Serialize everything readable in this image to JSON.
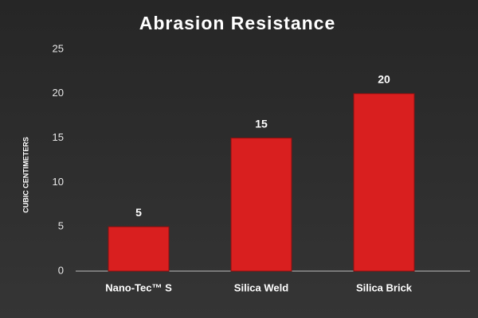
{
  "chart_data": {
    "type": "bar",
    "title": "Abrasion Resistance",
    "y_label": "CUBIC CENTIMETERS",
    "categories": [
      "Nano-Tec™ S",
      "Silica Weld",
      "Silica Brick"
    ],
    "values": [
      5,
      15,
      20
    ],
    "color": "#d91f1f",
    "ylim": [
      0,
      25
    ],
    "yticks": [
      0,
      5,
      10,
      15,
      20,
      25
    ],
    "grid": false
  }
}
